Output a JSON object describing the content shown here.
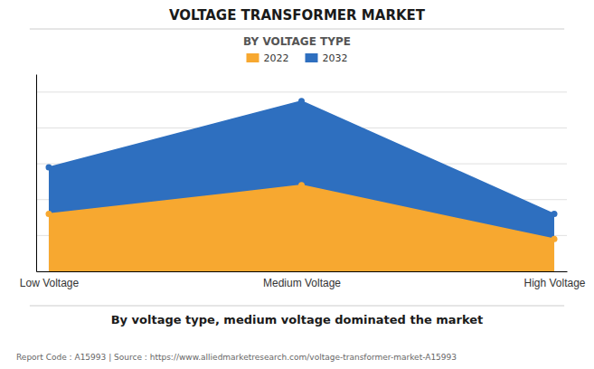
{
  "chart_data": {
    "type": "area",
    "title": "VOLTAGE TRANSFORMER MARKET",
    "subtitle": "BY VOLTAGE TYPE",
    "categories": [
      "Low Voltage",
      "Medium Voltage",
      "High Voltage"
    ],
    "series": [
      {
        "name": "2022",
        "color": "#F7A830",
        "values": [
          3.2,
          4.8,
          1.8
        ],
        "marker": "circle"
      },
      {
        "name": "2032",
        "color": "#2E6FBF",
        "values": [
          5.8,
          9.5,
          3.2
        ],
        "marker": "circle"
      }
    ],
    "ylim": [
      0,
      11
    ],
    "yticks": [
      2,
      4,
      6,
      8,
      10
    ],
    "grid": true,
    "tick_labels": "x",
    "legend": "top",
    "annotations": [
      "By voltage type, medium voltage dominated the market",
      "Report Code : A15993  |  Source : https://www.alliedmarketresearch.com/voltage-transformer-market-A15993"
    ]
  }
}
